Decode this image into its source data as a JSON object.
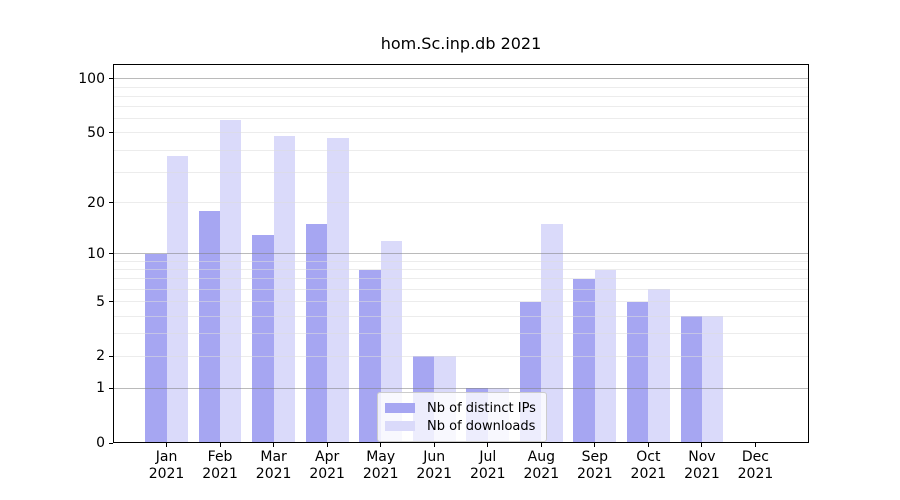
{
  "title": "hom.Sc.inp.db 2021",
  "y_axis": {
    "ticks": [
      100,
      50,
      20,
      10,
      5,
      2,
      1,
      0
    ]
  },
  "x_axis": {
    "months": [
      "Jan",
      "Feb",
      "Mar",
      "Apr",
      "May",
      "Jun",
      "Jul",
      "Aug",
      "Sep",
      "Oct",
      "Nov",
      "Dec"
    ],
    "year": "2021"
  },
  "legend": {
    "items": [
      {
        "label": "Nb of distinct IPs",
        "color": "#a6a6f2"
      },
      {
        "label": "Nb of downloads",
        "color": "#dadafa"
      }
    ]
  },
  "chart_data": {
    "type": "bar",
    "title": "hom.Sc.inp.db 2021",
    "xlabel": "",
    "ylabel": "",
    "y_scale": "log1p",
    "ylim": [
      0,
      126
    ],
    "yticks": [
      0,
      1,
      2,
      5,
      10,
      20,
      50,
      100
    ],
    "grid": true,
    "legend_position": "lower center",
    "categories": [
      "Jan 2021",
      "Feb 2021",
      "Mar 2021",
      "Apr 2021",
      "May 2021",
      "Jun 2021",
      "Jul 2021",
      "Aug 2021",
      "Sep 2021",
      "Oct 2021",
      "Nov 2021",
      "Dec 2021"
    ],
    "series": [
      {
        "name": "Nb of distinct IPs",
        "color": "#a6a6f2",
        "values": [
          10,
          18,
          13,
          15,
          8,
          2,
          1,
          5,
          7,
          5,
          4,
          0
        ]
      },
      {
        "name": "Nb of downloads",
        "color": "#dadafa",
        "values": [
          37,
          59,
          48,
          47,
          12,
          2,
          1,
          15,
          8,
          6,
          4,
          0
        ]
      }
    ]
  }
}
